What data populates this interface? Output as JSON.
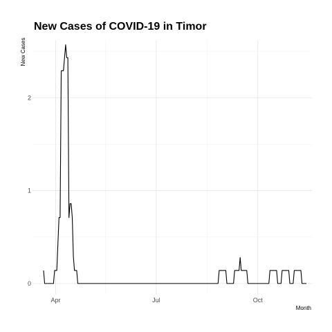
{
  "chart_data": {
    "type": "line",
    "title": "New Cases of COVID-19 in Timor",
    "xlabel": "Month",
    "ylabel": "New Cases",
    "x_start": "2020-03-21",
    "x_end": "2020-11-08",
    "xlim": [
      "2020-03-11",
      "2020-11-19"
    ],
    "ylim": [
      -0.12,
      2.62
    ],
    "x_ticks": [
      {
        "label": "Apr",
        "date": "2020-04-01"
      },
      {
        "label": "Jul",
        "date": "2020-07-01"
      },
      {
        "label": "Oct",
        "date": "2020-10-01"
      }
    ],
    "x_minor_ticks": [
      "2020-05-16",
      "2020-08-16"
    ],
    "y_ticks": [
      0,
      1,
      2
    ],
    "y_minor_ticks": [
      0.5,
      1.5,
      2.5
    ],
    "grid": true,
    "line_color": "#000000",
    "values": [
      0.14,
      0,
      0,
      0,
      0,
      0,
      0,
      0,
      0,
      0,
      0.14,
      0.14,
      0.14,
      0.43,
      0.71,
      0.71,
      2.29,
      2.29,
      2.29,
      2.43,
      2.57,
      2.43,
      2.43,
      0.71,
      0.86,
      0.86,
      0.71,
      0.29,
      0.14,
      0.14,
      0.14,
      0,
      0,
      0,
      0,
      0,
      0,
      0,
      0,
      0,
      0,
      0,
      0,
      0,
      0,
      0,
      0,
      0,
      0,
      0,
      0,
      0,
      0,
      0,
      0,
      0,
      0,
      0,
      0,
      0,
      0,
      0,
      0,
      0,
      0,
      0,
      0,
      0,
      0,
      0,
      0,
      0,
      0,
      0,
      0,
      0,
      0,
      0,
      0,
      0,
      0,
      0,
      0,
      0,
      0,
      0,
      0,
      0,
      0,
      0,
      0,
      0,
      0,
      0,
      0,
      0,
      0,
      0,
      0,
      0,
      0,
      0,
      0,
      0,
      0,
      0,
      0,
      0,
      0,
      0,
      0,
      0,
      0,
      0,
      0,
      0,
      0,
      0,
      0,
      0,
      0,
      0,
      0,
      0,
      0,
      0,
      0,
      0,
      0,
      0,
      0,
      0,
      0,
      0,
      0,
      0,
      0,
      0,
      0,
      0,
      0,
      0,
      0,
      0,
      0,
      0,
      0,
      0,
      0,
      0,
      0,
      0,
      0,
      0,
      0,
      0,
      0,
      0,
      0,
      0.14,
      0.14,
      0.14,
      0.14,
      0.14,
      0.14,
      0.14,
      0,
      0,
      0,
      0,
      0,
      0,
      0,
      0.14,
      0.14,
      0.14,
      0.14,
      0.14,
      0.28,
      0.14,
      0.14,
      0.14,
      0.14,
      0.14,
      0.14,
      0,
      0,
      0,
      0,
      0,
      0,
      0,
      0,
      0,
      0,
      0,
      0,
      0,
      0,
      0,
      0,
      0,
      0,
      0,
      0,
      0.14,
      0.14,
      0.14,
      0.14,
      0.14,
      0.14,
      0.14,
      0,
      0,
      0,
      0,
      0.14,
      0.14,
      0.14,
      0.14,
      0.14,
      0.14,
      0.14,
      0,
      0,
      0,
      0,
      0.14,
      0.14,
      0.14,
      0.14,
      0.14,
      0.14,
      0.14,
      0,
      0,
      0,
      0,
      0
    ]
  }
}
